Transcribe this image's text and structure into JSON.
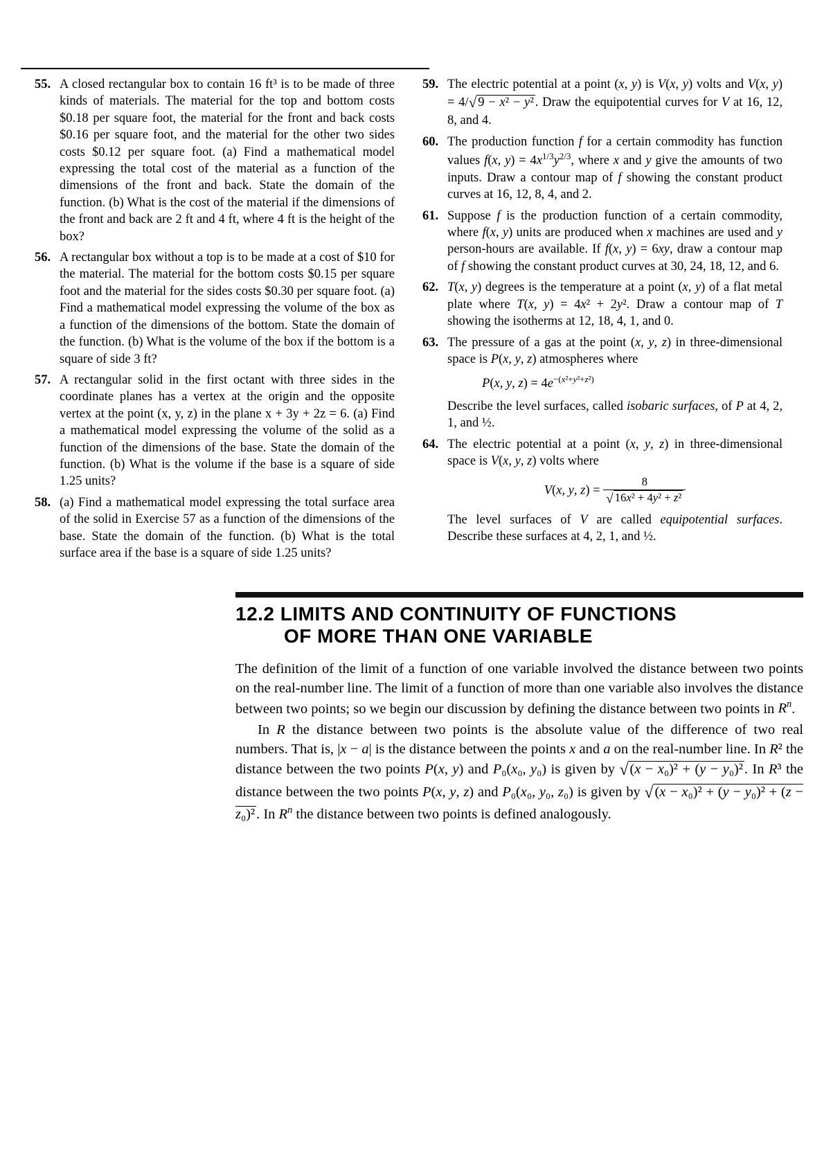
{
  "problems_left": [
    {
      "num": "55.",
      "text": "A closed rectangular box to contain 16 ft³ is to be made of three kinds of materials. The material for the top and bottom costs $0.18 per square foot, the material for the front and back costs $0.16 per square foot, and the material for the other two sides costs $0.12 per square foot. (a) Find a mathematical model expressing the total cost of the material as a function of the dimensions of the front and back. State the domain of the function. (b) What is the cost of the material if the dimensions of the front and back are 2 ft and 4 ft, where 4 ft is the height of the box?"
    },
    {
      "num": "56.",
      "text": "A rectangular box without a top is to be made at a cost of $10 for the material. The material for the bottom costs $0.15 per square foot and the material for the sides costs $0.30 per square foot. (a) Find a mathematical model expressing the volume of the box as a function of the dimensions of the bottom. State the domain of the function. (b) What is the volume of the box if the bottom is a square of side 3 ft?"
    },
    {
      "num": "57.",
      "text": "A rectangular solid in the first octant with three sides in the coordinate planes has a vertex at the origin and the opposite vertex at the point (x, y, z) in the plane x + 3y + 2z = 6. (a) Find a mathematical model expressing the volume of the solid as a function of the dimensions of the base. State the domain of the function. (b) What is the volume if the base is a square of side 1.25 units?"
    },
    {
      "num": "58.",
      "text": "(a) Find a mathematical model expressing the total surface area of the solid in Exercise 57 as a function of the dimensions of the base. State the domain of the function. (b) What is the total surface area if the base is a square of side 1.25 units?"
    }
  ],
  "problems_right": [
    {
      "num": "59.",
      "html": "The electric potential at a point (<em>x</em>, <em>y</em>) is <em>V</em>(<em>x</em>, <em>y</em>) volts and <em>V</em>(<em>x</em>, <em>y</em>) = 4/<span class='radic'>√</span><span class='sqrt'>9 − <em>x</em>² − <em>y</em>²</span>. Draw the equipotential curves for <em>V</em> at 16, 12, 8, and 4."
    },
    {
      "num": "60.",
      "html": "The production function <em>f</em> for a certain commodity has function values <em>f</em>(<em>x</em>, <em>y</em>) = 4<em>x</em><sup>1/3</sup><em>y</em><sup>2/3</sup>, where <em>x</em> and <em>y</em> give the amounts of two inputs. Draw a contour map of <em>f</em> showing the constant product curves at 16, 12, 8, 4, and 2."
    },
    {
      "num": "61.",
      "html": "Suppose <em>f</em> is the production function of a certain commodity, where <em>f</em>(<em>x</em>, <em>y</em>) units are produced when <em>x</em> machines are used and <em>y</em> person-hours are available. If <em>f</em>(<em>x</em>, <em>y</em>) = 6<em>xy</em>, draw a contour map of <em>f</em> showing the constant product curves at 30, 24, 18, 12, and 6."
    },
    {
      "num": "62.",
      "html": "<em>T</em>(<em>x</em>, <em>y</em>) degrees is the temperature at a point (<em>x</em>, <em>y</em>) of a flat metal plate where <em>T</em>(<em>x</em>, <em>y</em>) = 4<em>x</em>² + 2<em>y</em>². Draw a contour map of <em>T</em> showing the isotherms at 12, 18, 4, 1, and 0."
    },
    {
      "num": "63.",
      "html": "The pressure of a gas at the point (<em>x</em>, <em>y</em>, <em>z</em>) in three-dimensional space is <em>P</em>(<em>x</em>, <em>y</em>, <em>z</em>) atmospheres where<div class='indent-eq'><em>P</em>(<em>x</em>, <em>y</em>, <em>z</em>) = 4<em>e</em><sup>−(<em>x</em>²+<em>y</em>²+<em>z</em>²)</sup></div>Describe the level surfaces, called <em>isobaric surfaces</em>, of <em>P</em> at 4, 2, 1, and ½."
    },
    {
      "num": "64.",
      "html": "The electric potential at a point (<em>x</em>, <em>y</em>, <em>z</em>) in three-dimensional space is <em>V</em>(<em>x</em>, <em>y</em>, <em>z</em>) volts where<div class='eq'><em>V</em>(<em>x</em>, <em>y</em>, <em>z</em>) = <span class='frac'><span class='num'>8</span><span class='den'><span class='radic'>√</span><span class='sqrt'>16<em>x</em>² + 4<em>y</em>² + <em>z</em>²</span></span></span></div>The level surfaces of <em>V</em> are called <em>equipotential surfaces</em>. Describe these surfaces at 4, 2, 1, and ½."
    }
  ],
  "section": {
    "title_line1": "12.2 LIMITS AND CONTINUITY OF FUNCTIONS",
    "title_line2": "OF MORE THAN ONE VARIABLE",
    "para1": "The definition of the limit of a function of one variable involved the distance between two points on the real-number line. The limit of a function of more than one variable also involves the distance between two points; so we begin our discussion by defining the distance between two points in <em>R<sup>n</sup></em>.",
    "para2": "In <em>R</em> the distance between two points is the absolute value of the difference of two real numbers. That is, |<em>x</em> − <em>a</em>| is the distance between the points <em>x</em> and <em>a</em> on the real-number line. In <em>R</em>² the distance between the two points <em>P</em>(<em>x</em>, <em>y</em>) and <em>P</em>₀(<em>x</em>₀, <em>y</em>₀) is given by <span class='radic'>√</span><span class='sqrt'>(<em>x</em> − <em>x</em>₀)² + (<em>y</em> − <em>y</em>₀)²</span>. In <em>R</em>³ the distance between the two points <em>P</em>(<em>x</em>, <em>y</em>, <em>z</em>) and <em>P</em>₀(<em>x</em>₀, <em>y</em>₀, <em>z</em>₀) is given by <span class='radic'>√</span><span class='sqrt'>(<em>x</em> − <em>x</em>₀)² + (<em>y</em> − <em>y</em>₀)² + (<em>z</em> − <em>z</em>₀)²</span>. In <em>R<sup>n</sup></em> the distance between two points is defined analogously."
  }
}
